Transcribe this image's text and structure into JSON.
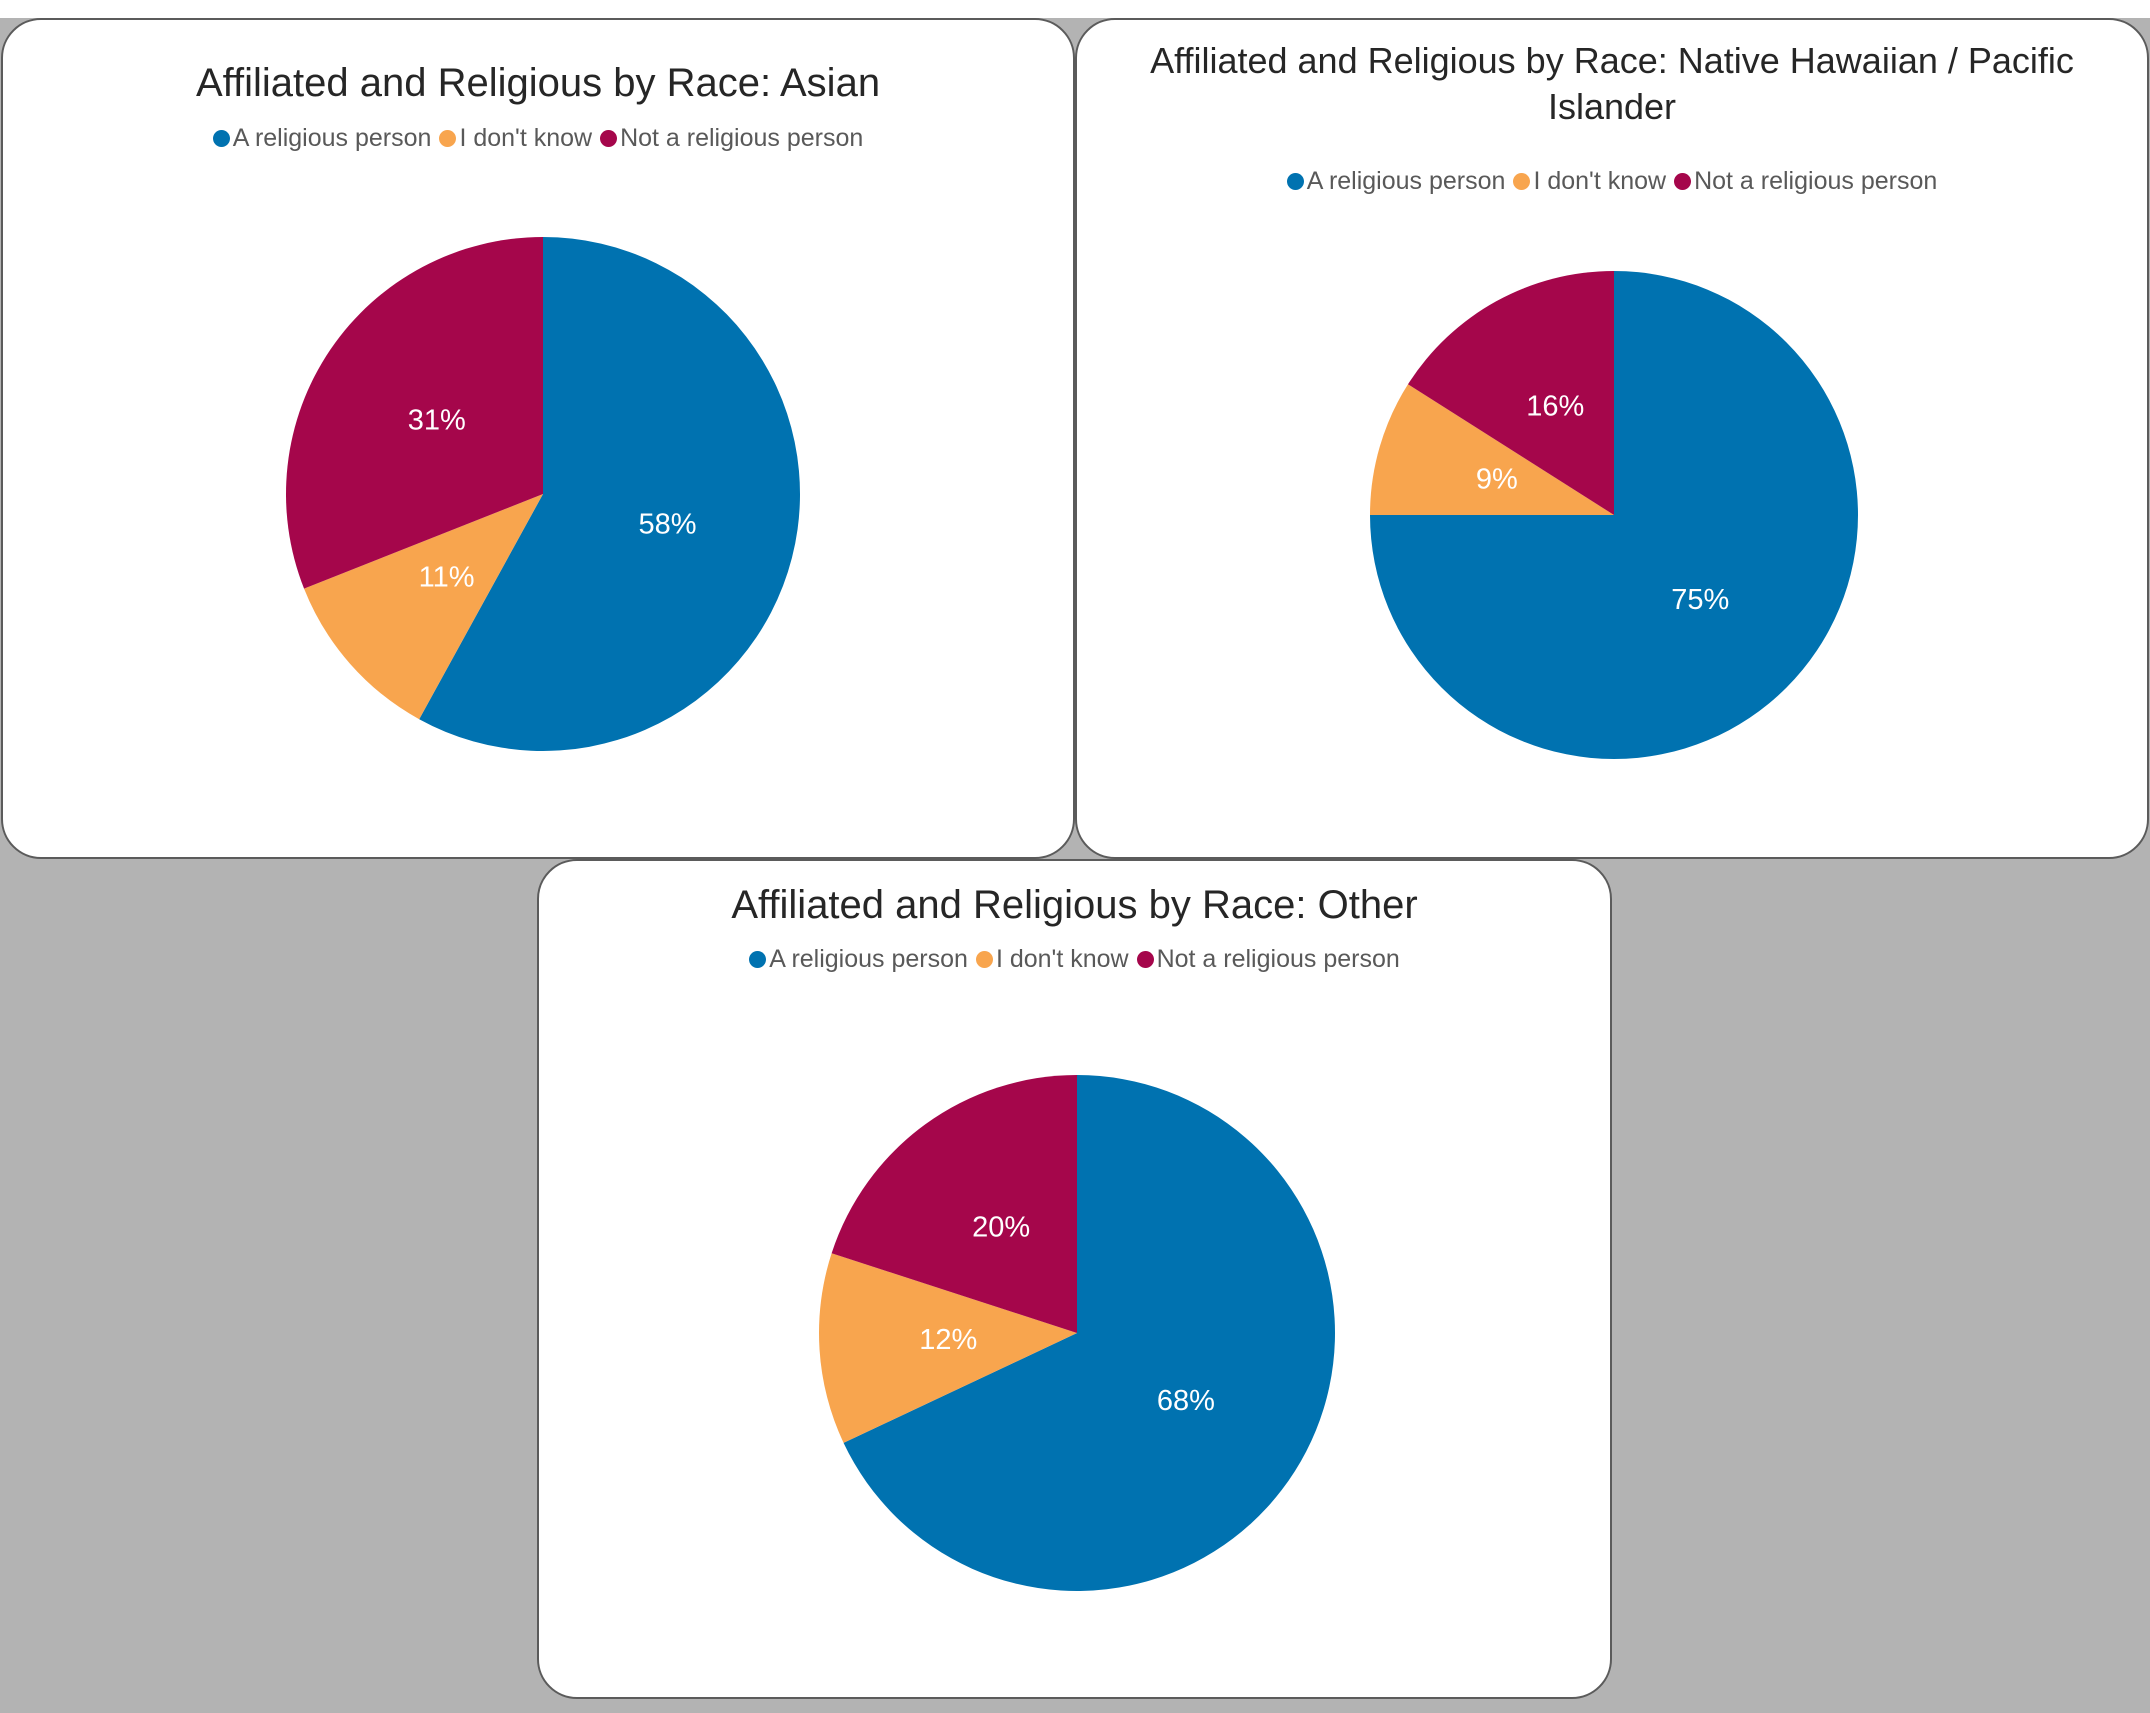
{
  "chart_data": [
    {
      "type": "pie",
      "title": "Affiliated and Religious by Race: Asian",
      "categories": [
        "A religious person",
        "I don't know",
        "Not a religious person"
      ],
      "values": [
        58,
        11,
        31
      ],
      "labels": [
        "58%",
        "11%",
        "31%"
      ],
      "colors": [
        "#0072b0",
        "#f8a54e",
        "#a5064b"
      ],
      "legend": "top"
    },
    {
      "type": "pie",
      "title": "Affiliated and Religious by Race: Native Hawaiian / Pacific Islander",
      "categories": [
        "A religious person",
        "I don't know",
        "Not a religious person"
      ],
      "values": [
        75,
        9,
        16
      ],
      "labels": [
        "75%",
        "9%",
        "16%"
      ],
      "colors": [
        "#0072b0",
        "#f8a54e",
        "#a5064b"
      ],
      "legend": "top"
    },
    {
      "type": "pie",
      "title": "Affiliated and Religious by Race: Other",
      "categories": [
        "A religious person",
        "I don't know",
        "Not a religious person"
      ],
      "values": [
        68,
        12,
        20
      ],
      "labels": [
        "68%",
        "12%",
        "20%"
      ],
      "colors": [
        "#0072b0",
        "#f8a54e",
        "#a5064b"
      ],
      "legend": "top"
    }
  ]
}
